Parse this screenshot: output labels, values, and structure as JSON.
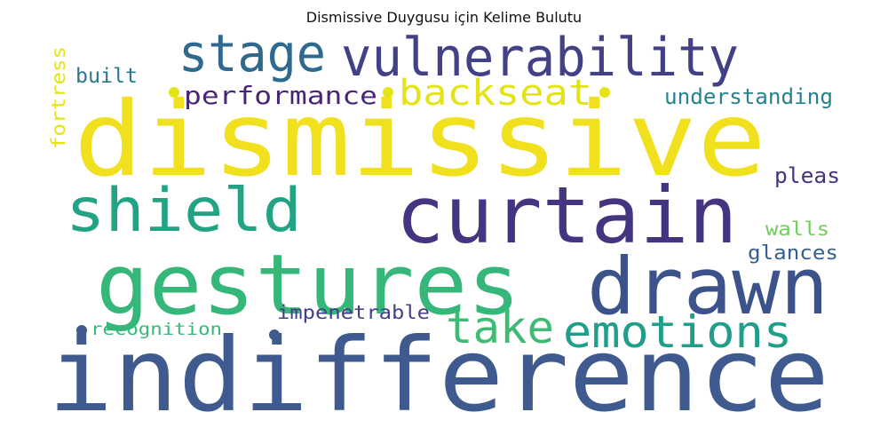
{
  "title": "Dismissive Duygusu için Kelime Bulutu",
  "words": [
    {
      "text": "dismissive",
      "color": "#f0e01d"
    },
    {
      "text": "indifference",
      "color": "#3e5a8f"
    },
    {
      "text": "gestures",
      "color": "#35b779"
    },
    {
      "text": "curtain",
      "color": "#453581"
    },
    {
      "text": "drawn",
      "color": "#3b528b"
    },
    {
      "text": "vulnerability",
      "color": "#424086"
    },
    {
      "text": "stage",
      "color": "#30698e"
    },
    {
      "text": "shield",
      "color": "#22a384"
    },
    {
      "text": "emotions",
      "color": "#1f9e89"
    },
    {
      "text": "take",
      "color": "#3fbc73"
    },
    {
      "text": "backseat",
      "color": "#e3e418"
    },
    {
      "text": "performance",
      "color": "#482576"
    },
    {
      "text": "understanding",
      "color": "#26828e"
    },
    {
      "text": "impenetrable",
      "color": "#433e85"
    },
    {
      "text": "recognition",
      "color": "#37b878"
    },
    {
      "text": "built",
      "color": "#2a788e"
    },
    {
      "text": "fortress",
      "color": "#e5e419"
    },
    {
      "text": "pleas",
      "color": "#46337e"
    },
    {
      "text": "walls",
      "color": "#6ece58"
    },
    {
      "text": "glances",
      "color": "#355f8d"
    }
  ]
}
